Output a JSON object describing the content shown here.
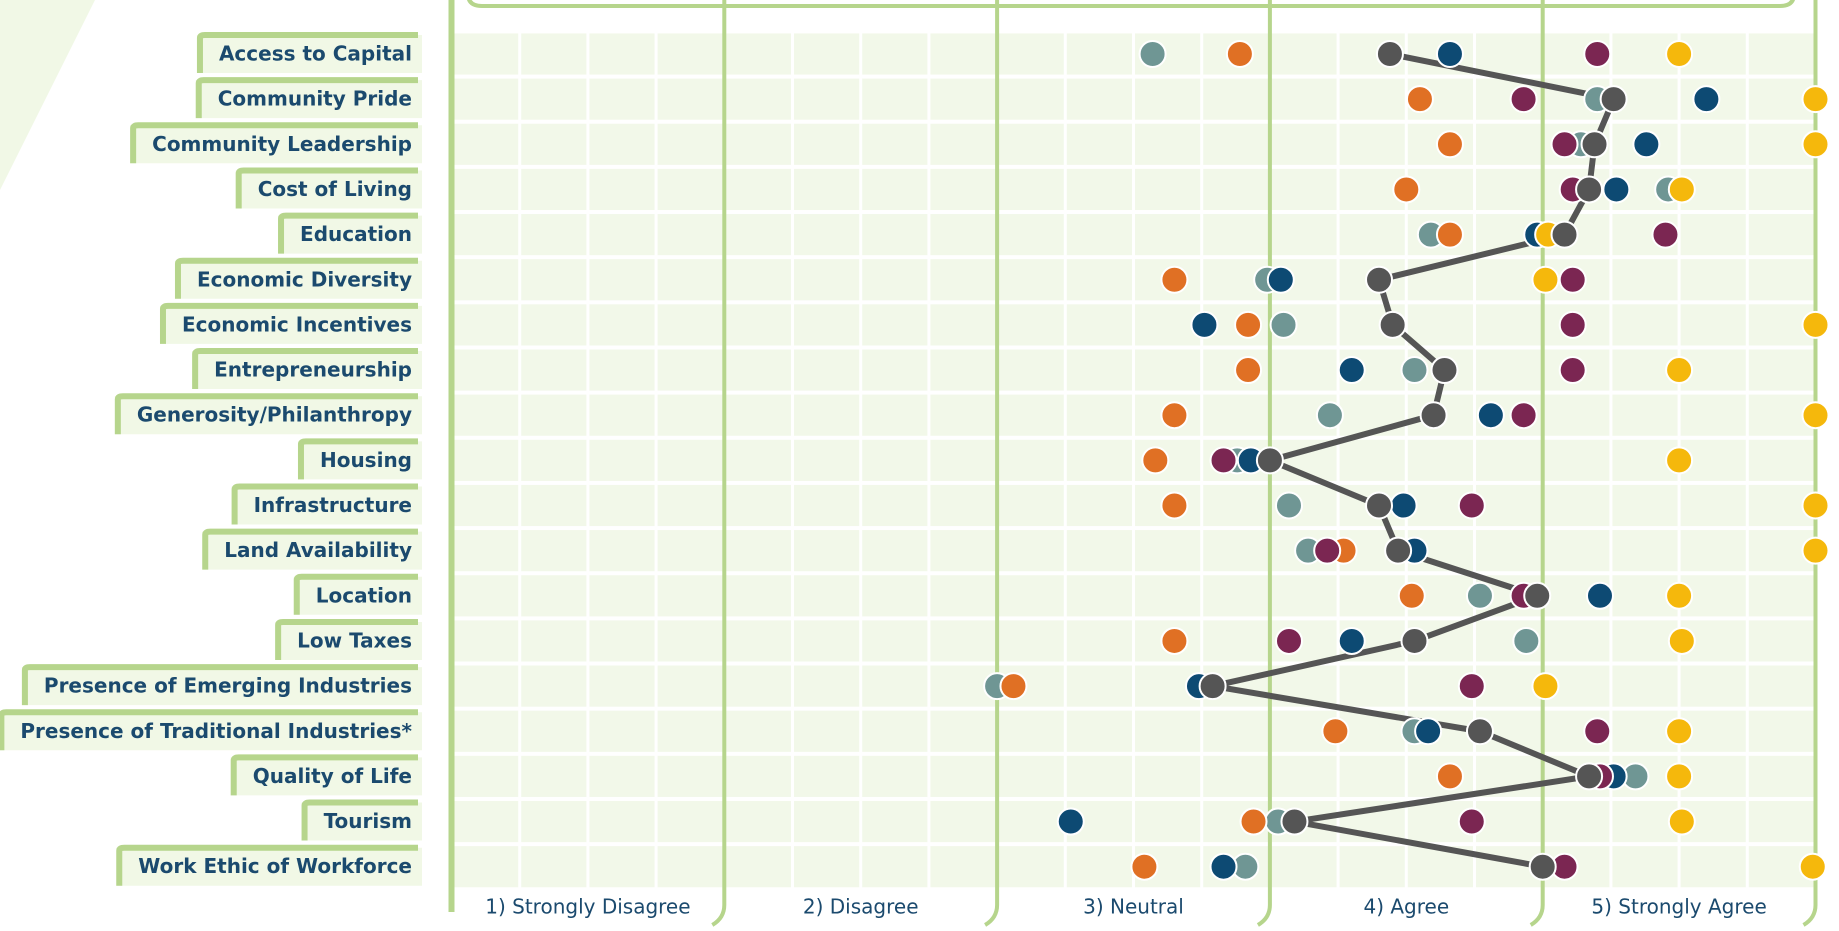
{
  "chart_data": {
    "type": "dot",
    "categories": [
      "Access to Capital",
      "Community Pride",
      "Community Leadership",
      "Cost of Living",
      "Education",
      "Economic Diversity",
      "Economic Incentives",
      "Entrepreneurship",
      "Generosity/Philanthropy",
      "Housing",
      "Infrastructure",
      "Land Availability",
      "Location",
      "Low Taxes",
      "Presence of Emerging Industries",
      "Presence of Traditional Industries*",
      "Quality of Life",
      "Tourism",
      "Work Ethic of Workforce"
    ],
    "x_bands": [
      "1) Strongly Disagree",
      "2) Disagree",
      "3) Neutral",
      "4) Agree",
      "5) Strongly Agree"
    ],
    "xlim": [
      0,
      5
    ],
    "xticks": [
      0,
      1,
      2,
      3,
      4,
      5
    ],
    "series": [
      {
        "color": "#6f9694",
        "values": [
          2.57,
          4.2,
          4.14,
          4.46,
          3.59,
          2.99,
          3.05,
          3.53,
          3.22,
          2.88,
          3.07,
          3.14,
          3.77,
          3.94,
          2.0,
          3.53,
          4.34,
          3.03,
          2.91
        ]
      },
      {
        "color": "#e07024",
        "values": [
          2.89,
          3.55,
          3.66,
          3.5,
          3.66,
          2.65,
          2.92,
          2.92,
          2.65,
          2.58,
          2.65,
          3.27,
          3.52,
          2.65,
          2.06,
          3.24,
          3.66,
          2.94,
          2.54
        ]
      },
      {
        "color": "#0d4a73",
        "values": [
          3.66,
          4.6,
          4.38,
          4.27,
          3.98,
          3.04,
          2.76,
          3.3,
          3.81,
          2.93,
          3.49,
          3.53,
          4.21,
          3.3,
          2.74,
          3.58,
          4.26,
          2.27,
          2.83
        ]
      },
      {
        "color": "#7b2652",
        "values": [
          4.2,
          3.93,
          4.08,
          4.11,
          4.45,
          4.11,
          4.11,
          4.11,
          3.93,
          2.83,
          3.74,
          3.21,
          3.93,
          3.07,
          3.74,
          4.2,
          4.21,
          3.74,
          4.08
        ]
      },
      {
        "color": "#f5b80c",
        "values": [
          4.5,
          5.0,
          5.0,
          4.51,
          4.02,
          4.01,
          5.0,
          4.5,
          5.0,
          4.5,
          5.0,
          5.0,
          4.5,
          4.51,
          4.01,
          4.5,
          4.5,
          4.51,
          4.99
        ]
      },
      {
        "color": "#555555",
        "line": true,
        "values": [
          3.44,
          4.26,
          4.19,
          4.17,
          4.08,
          3.4,
          3.45,
          3.64,
          3.6,
          3.0,
          3.4,
          3.47,
          3.98,
          3.53,
          2.79,
          3.77,
          4.17,
          3.09,
          4.0
        ]
      }
    ]
  }
}
